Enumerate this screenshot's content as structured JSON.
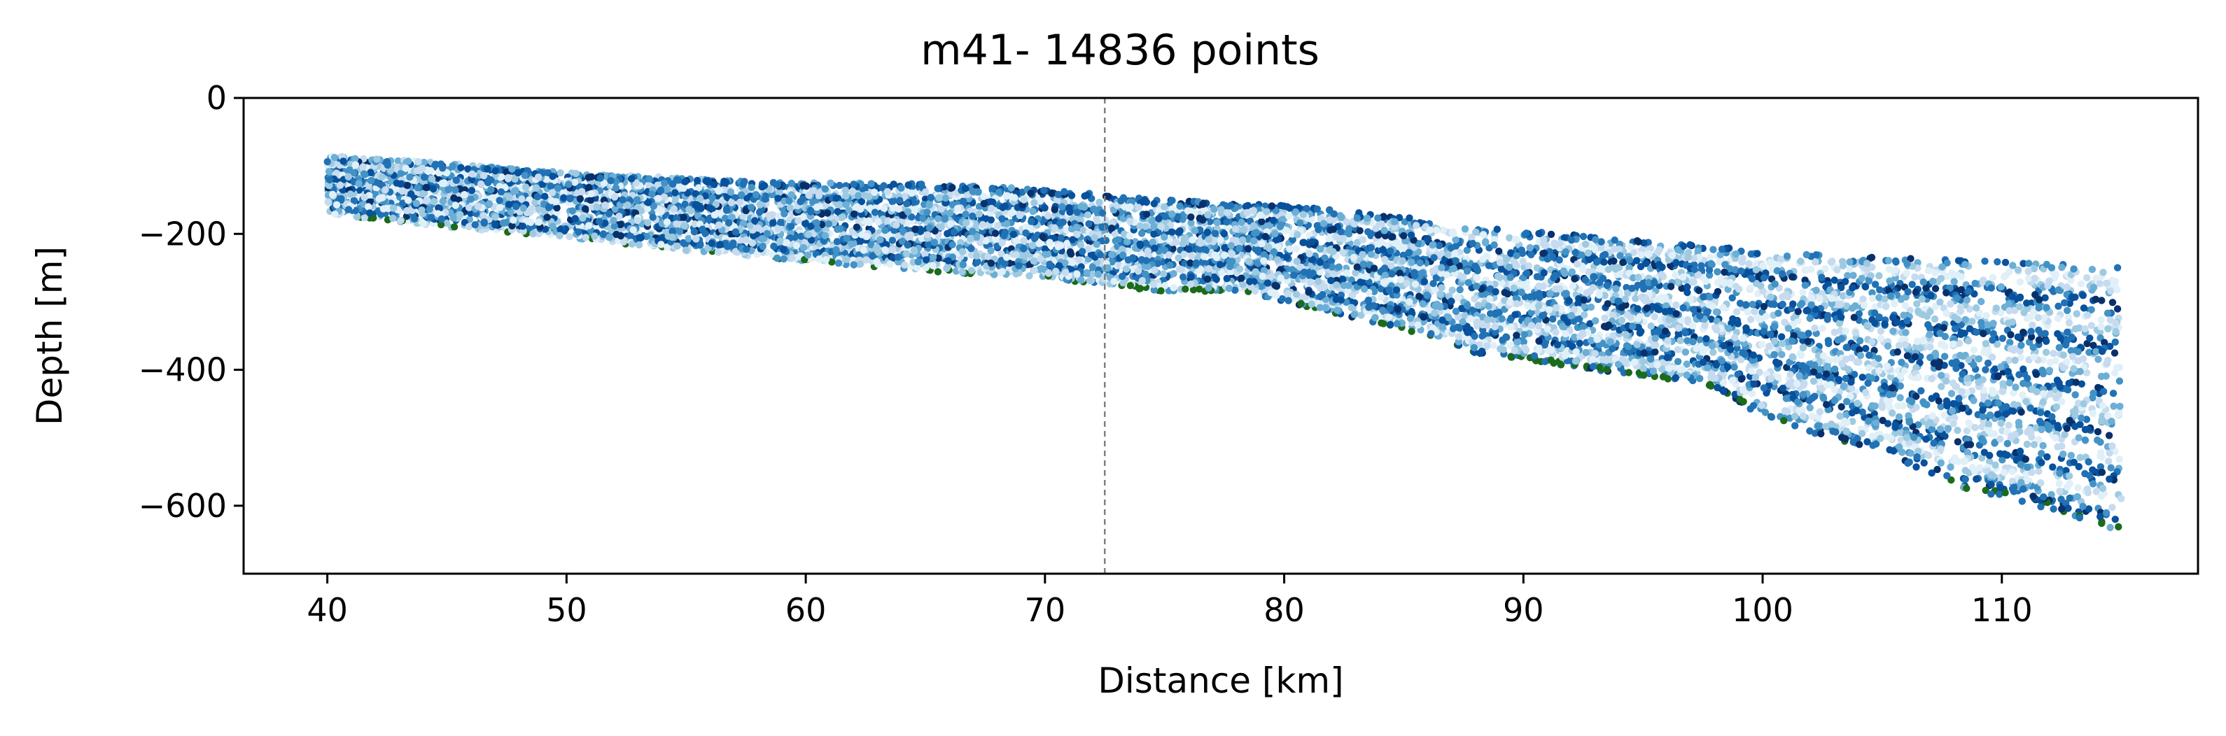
{
  "chart_data": {
    "type": "scatter",
    "title": "m41- 14836 points",
    "xlabel": "Distance [km]",
    "ylabel": "Depth [m]",
    "xlim": [
      36.5,
      118.2
    ],
    "ylim": [
      -700,
      0
    ],
    "xticks": [
      40,
      50,
      60,
      70,
      80,
      90,
      100,
      110
    ],
    "yticks": [
      0,
      -200,
      -400,
      -600
    ],
    "grid": false,
    "legend": "none",
    "vertical_marker_x": 72.5,
    "top_surface": [
      [
        40,
        -85
      ],
      [
        45,
        -95
      ],
      [
        50,
        -110
      ],
      [
        55,
        -118
      ],
      [
        60,
        -125
      ],
      [
        65,
        -125
      ],
      [
        70,
        -135
      ],
      [
        75,
        -150
      ],
      [
        80,
        -158
      ],
      [
        85,
        -175
      ],
      [
        90,
        -195
      ],
      [
        95,
        -210
      ],
      [
        100,
        -225
      ],
      [
        105,
        -235
      ],
      [
        110,
        -240
      ],
      [
        115,
        -250
      ]
    ],
    "bottom_surface": [
      [
        40,
        -170
      ],
      [
        45,
        -190
      ],
      [
        50,
        -205
      ],
      [
        55,
        -225
      ],
      [
        60,
        -240
      ],
      [
        65,
        -255
      ],
      [
        70,
        -265
      ],
      [
        72.5,
        -275
      ],
      [
        75,
        -285
      ],
      [
        78,
        -285
      ],
      [
        80,
        -300
      ],
      [
        85,
        -340
      ],
      [
        88,
        -375
      ],
      [
        90,
        -385
      ],
      [
        95,
        -410
      ],
      [
        98,
        -425
      ],
      [
        100,
        -470
      ],
      [
        105,
        -525
      ],
      [
        108,
        -570
      ],
      [
        112,
        -605
      ],
      [
        115,
        -640
      ]
    ],
    "color_scale": [
      "#08306b",
      "#08519c",
      "#2171b5",
      "#4292c6",
      "#6baed6",
      "#9ecae1",
      "#c6dbef",
      "#e0f0f8"
    ],
    "base_marker_color": "#1b6b1b"
  }
}
